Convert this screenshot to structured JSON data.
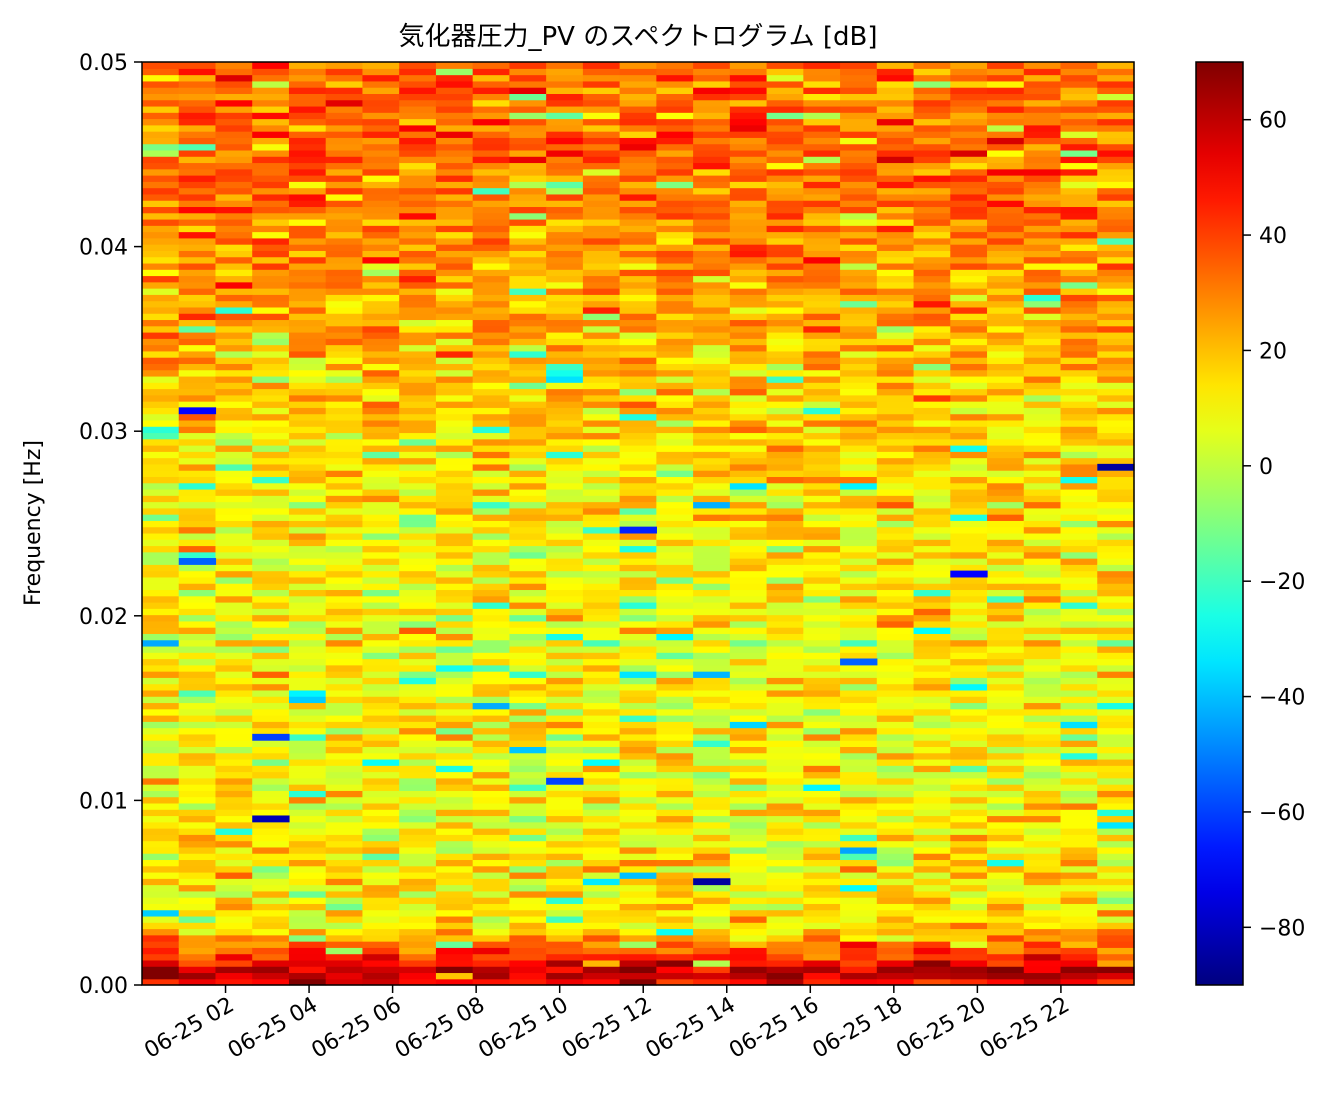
{
  "chart_data": {
    "type": "heatmap",
    "title": "気化器圧力_PV のスペクトログラム [dB]",
    "xlabel": "",
    "ylabel": "Frequency [Hz]",
    "ylim": [
      0.0,
      0.05
    ],
    "yticks": [
      "0.00",
      "0.01",
      "0.02",
      "0.03",
      "0.04",
      "0.05"
    ],
    "xlim_hours": [
      0.0,
      23.75
    ],
    "x_tick_labels": [
      "06-25 02",
      "06-25 04",
      "06-25 06",
      "06-25 08",
      "06-25 10",
      "06-25 12",
      "06-25 14",
      "06-25 16",
      "06-25 18",
      "06-25 20",
      "06-25 22"
    ],
    "colormap": "jet",
    "color_range_db": [
      -90,
      70
    ],
    "colorbar_ticks": [
      "60",
      "40",
      "20",
      "0",
      "−20",
      "−40",
      "−60",
      "−80"
    ],
    "grid": false,
    "time_columns": 27,
    "frequency_rows": 147,
    "spectrum_profile_db": {
      "frequency_hz": [
        0.0,
        0.0007,
        0.0015,
        0.003,
        0.01,
        0.02,
        0.03,
        0.035,
        0.04,
        0.045,
        0.05
      ],
      "mean_db": [
        50,
        62,
        45,
        14,
        10,
        10,
        16,
        22,
        28,
        33,
        34
      ]
    },
    "notable_cells": [
      {
        "time": "06-25 01",
        "frequency_hz": 0.0311,
        "db": -70
      },
      {
        "time": "06-25 01",
        "frequency_hz": 0.0231,
        "db": -55
      },
      {
        "time": "06-25 03",
        "frequency_hz": 0.0091,
        "db": -82
      },
      {
        "time": "06-25 03",
        "frequency_hz": 0.0134,
        "db": -60
      },
      {
        "time": "06-25 10",
        "frequency_hz": 0.0111,
        "db": -60
      },
      {
        "time": "06-25 12",
        "frequency_hz": 0.0246,
        "db": -65
      },
      {
        "time": "06-25 14",
        "frequency_hz": 0.0056,
        "db": -85
      },
      {
        "time": "06-25 17",
        "frequency_hz": 0.0175,
        "db": -55
      },
      {
        "time": "06-25 20",
        "frequency_hz": 0.0222,
        "db": -70
      },
      {
        "time": "06-25 23",
        "frequency_hz": 0.0281,
        "db": -85
      }
    ]
  }
}
